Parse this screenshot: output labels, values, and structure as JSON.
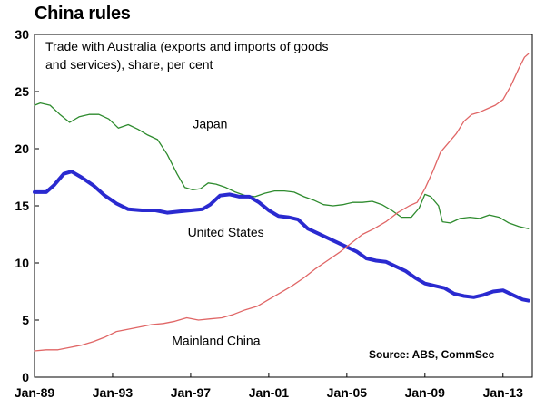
{
  "chart_data": {
    "type": "line",
    "title": "China rules",
    "subtitle_lines": [
      "Trade with Australia (exports and imports of goods",
      "and services), share, per cent"
    ],
    "xlabel": "",
    "ylabel": "",
    "ylim": [
      0,
      30
    ],
    "yticks": [
      0,
      5,
      10,
      15,
      20,
      25,
      30
    ],
    "xlim": [
      1989.0,
      2014.5
    ],
    "xticks": [
      {
        "value": 1989,
        "label": "Jan-89"
      },
      {
        "value": 1993,
        "label": "Jan-93"
      },
      {
        "value": 1997,
        "label": "Jan-97"
      },
      {
        "value": 2001,
        "label": "Jan-01"
      },
      {
        "value": 2005,
        "label": "Jan-05"
      },
      {
        "value": 2009,
        "label": "Jan-09"
      },
      {
        "value": 2013,
        "label": "Jan-13"
      }
    ],
    "grid": false,
    "series": [
      {
        "name": "Japan",
        "color": "#2e8b2e",
        "points": [
          [
            1989.0,
            23.8
          ],
          [
            1989.3,
            24.0
          ],
          [
            1989.8,
            23.8
          ],
          [
            1990.3,
            23.0
          ],
          [
            1990.8,
            22.3
          ],
          [
            1991.3,
            22.8
          ],
          [
            1991.8,
            23.0
          ],
          [
            1992.3,
            23.0
          ],
          [
            1992.8,
            22.6
          ],
          [
            1993.3,
            21.8
          ],
          [
            1993.8,
            22.1
          ],
          [
            1994.3,
            21.7
          ],
          [
            1994.8,
            21.2
          ],
          [
            1995.3,
            20.8
          ],
          [
            1995.8,
            19.5
          ],
          [
            1996.3,
            17.8
          ],
          [
            1996.7,
            16.6
          ],
          [
            1997.1,
            16.4
          ],
          [
            1997.5,
            16.5
          ],
          [
            1997.9,
            17.0
          ],
          [
            1998.3,
            16.9
          ],
          [
            1998.8,
            16.6
          ],
          [
            1999.3,
            16.2
          ],
          [
            1999.8,
            15.9
          ],
          [
            2000.3,
            15.8
          ],
          [
            2000.8,
            16.1
          ],
          [
            2001.3,
            16.3
          ],
          [
            2001.8,
            16.3
          ],
          [
            2002.3,
            16.2
          ],
          [
            2002.8,
            15.8
          ],
          [
            2003.3,
            15.5
          ],
          [
            2003.8,
            15.1
          ],
          [
            2004.3,
            15.0
          ],
          [
            2004.8,
            15.1
          ],
          [
            2005.3,
            15.3
          ],
          [
            2005.8,
            15.3
          ],
          [
            2006.3,
            15.4
          ],
          [
            2006.8,
            15.1
          ],
          [
            2007.3,
            14.6
          ],
          [
            2007.8,
            14.0
          ],
          [
            2008.3,
            14.0
          ],
          [
            2008.7,
            14.8
          ],
          [
            2009.0,
            16.0
          ],
          [
            2009.3,
            15.8
          ],
          [
            2009.7,
            15.0
          ],
          [
            2009.9,
            13.6
          ],
          [
            2010.3,
            13.5
          ],
          [
            2010.8,
            13.9
          ],
          [
            2011.3,
            14.0
          ],
          [
            2011.8,
            13.9
          ],
          [
            2012.3,
            14.2
          ],
          [
            2012.8,
            14.0
          ],
          [
            2013.3,
            13.5
          ],
          [
            2013.8,
            13.2
          ],
          [
            2014.3,
            13.0
          ]
        ]
      },
      {
        "name": "United States",
        "color": "#2a2ad0",
        "points": [
          [
            1989.0,
            16.2
          ],
          [
            1989.6,
            16.2
          ],
          [
            1990.0,
            16.8
          ],
          [
            1990.5,
            17.8
          ],
          [
            1990.9,
            18.0
          ],
          [
            1991.4,
            17.5
          ],
          [
            1992.0,
            16.8
          ],
          [
            1992.6,
            15.9
          ],
          [
            1993.2,
            15.2
          ],
          [
            1993.8,
            14.7
          ],
          [
            1994.5,
            14.6
          ],
          [
            1995.2,
            14.6
          ],
          [
            1995.8,
            14.4
          ],
          [
            1996.4,
            14.5
          ],
          [
            1997.0,
            14.6
          ],
          [
            1997.6,
            14.7
          ],
          [
            1998.0,
            15.1
          ],
          [
            1998.5,
            15.9
          ],
          [
            1999.0,
            16.0
          ],
          [
            1999.5,
            15.8
          ],
          [
            2000.0,
            15.8
          ],
          [
            2000.5,
            15.3
          ],
          [
            2001.0,
            14.6
          ],
          [
            2001.5,
            14.1
          ],
          [
            2002.0,
            14.0
          ],
          [
            2002.5,
            13.8
          ],
          [
            2003.0,
            13.0
          ],
          [
            2003.5,
            12.6
          ],
          [
            2004.0,
            12.2
          ],
          [
            2004.5,
            11.8
          ],
          [
            2005.0,
            11.4
          ],
          [
            2005.5,
            11.0
          ],
          [
            2006.0,
            10.4
          ],
          [
            2006.5,
            10.2
          ],
          [
            2007.0,
            10.1
          ],
          [
            2007.5,
            9.7
          ],
          [
            2008.0,
            9.3
          ],
          [
            2008.5,
            8.7
          ],
          [
            2009.0,
            8.2
          ],
          [
            2009.5,
            8.0
          ],
          [
            2010.0,
            7.8
          ],
          [
            2010.5,
            7.3
          ],
          [
            2011.0,
            7.1
          ],
          [
            2011.5,
            7.0
          ],
          [
            2012.0,
            7.2
          ],
          [
            2012.5,
            7.5
          ],
          [
            2013.0,
            7.6
          ],
          [
            2013.5,
            7.2
          ],
          [
            2014.0,
            6.8
          ],
          [
            2014.3,
            6.7
          ]
        ]
      },
      {
        "name": "Mainland China",
        "color": "#e06666",
        "points": [
          [
            1989.0,
            2.3
          ],
          [
            1989.6,
            2.4
          ],
          [
            1990.2,
            2.4
          ],
          [
            1990.8,
            2.6
          ],
          [
            1991.4,
            2.8
          ],
          [
            1992.0,
            3.1
          ],
          [
            1992.6,
            3.5
          ],
          [
            1993.2,
            4.0
          ],
          [
            1993.8,
            4.2
          ],
          [
            1994.4,
            4.4
          ],
          [
            1995.0,
            4.6
          ],
          [
            1995.6,
            4.7
          ],
          [
            1996.2,
            4.9
          ],
          [
            1996.8,
            5.2
          ],
          [
            1997.4,
            5.0
          ],
          [
            1998.0,
            5.1
          ],
          [
            1998.6,
            5.2
          ],
          [
            1999.2,
            5.5
          ],
          [
            1999.8,
            5.9
          ],
          [
            2000.4,
            6.2
          ],
          [
            2001.0,
            6.8
          ],
          [
            2001.6,
            7.4
          ],
          [
            2002.2,
            8.0
          ],
          [
            2002.8,
            8.7
          ],
          [
            2003.4,
            9.5
          ],
          [
            2004.0,
            10.2
          ],
          [
            2004.6,
            10.9
          ],
          [
            2005.2,
            11.7
          ],
          [
            2005.8,
            12.5
          ],
          [
            2006.4,
            13.0
          ],
          [
            2007.0,
            13.6
          ],
          [
            2007.6,
            14.4
          ],
          [
            2008.2,
            15.0
          ],
          [
            2008.6,
            15.3
          ],
          [
            2009.0,
            16.5
          ],
          [
            2009.4,
            18.0
          ],
          [
            2009.8,
            19.7
          ],
          [
            2010.2,
            20.5
          ],
          [
            2010.6,
            21.3
          ],
          [
            2011.0,
            22.4
          ],
          [
            2011.4,
            23.0
          ],
          [
            2011.8,
            23.2
          ],
          [
            2012.2,
            23.5
          ],
          [
            2012.6,
            23.8
          ],
          [
            2013.0,
            24.3
          ],
          [
            2013.4,
            25.5
          ],
          [
            2013.8,
            27.0
          ],
          [
            2014.1,
            28.0
          ],
          [
            2014.3,
            28.3
          ]
        ]
      }
    ],
    "annotations": [
      {
        "text": "Japan",
        "x": 1998.0,
        "y": 21.8
      },
      {
        "text": "United States",
        "x": 1998.8,
        "y": 12.3
      },
      {
        "text": "Mainland China",
        "x": 1998.3,
        "y": 2.8
      }
    ],
    "source": "Source: ABS, CommSec"
  }
}
